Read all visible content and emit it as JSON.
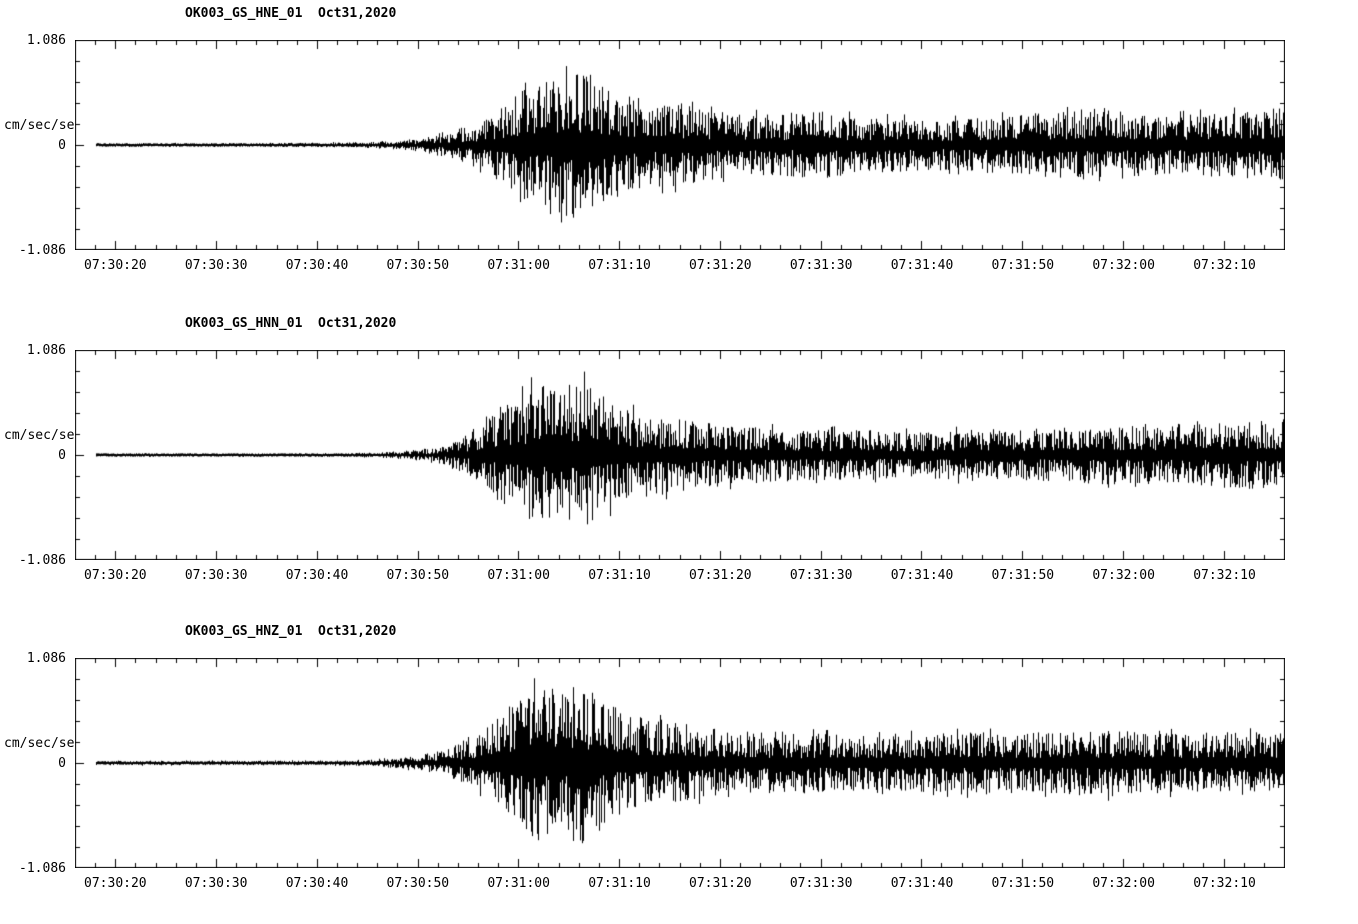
{
  "app": {
    "background": "#ffffff",
    "foreground": "#000000",
    "description": "Three-channel strong-motion seismogram display for station OK003"
  },
  "y_axis": {
    "label": "cm/sec/sec",
    "max_label": "1.086",
    "zero_label": "0",
    "min_label": "-1.086",
    "ymax": 1.086,
    "ymin": -1.086
  },
  "x_ticks": [
    "07:30:20",
    "07:30:30",
    "07:30:40",
    "07:30:50",
    "07:31:00",
    "07:31:10",
    "07:31:20",
    "07:31:30",
    "07:31:40",
    "07:31:50",
    "07:32:00",
    "07:32:10"
  ],
  "panels": [
    {
      "id": "hne",
      "title": "OK003_GS_HNE_01  Oct31,2020"
    },
    {
      "id": "hnn",
      "title": "OK003_GS_HNN_01  Oct31,2020"
    },
    {
      "id": "hnz",
      "title": "OK003_GS_HNZ_01  Oct31,2020"
    }
  ],
  "chart_data": [
    {
      "type": "line",
      "title": "OK003_GS_HNE_01  Oct31,2020",
      "xlabel": "",
      "ylabel": "cm/sec/sec",
      "ylim": [
        -1.086,
        1.086
      ],
      "x_tick_labels": [
        "07:30:20",
        "07:30:30",
        "07:30:40",
        "07:30:50",
        "07:31:00",
        "07:31:10",
        "07:31:20",
        "07:31:30",
        "07:31:40",
        "07:31:50",
        "07:32:00",
        "07:32:10"
      ],
      "axis_span_seconds": 120,
      "tick_interval_seconds": 10,
      "minor_tick_seconds": 2,
      "grid": false,
      "legend": "none",
      "waveform_envelope": {
        "note": "peak absolute amplitude (cm/sec/sec) vs seconds after left axis edge",
        "t": [
          2,
          10,
          20,
          26,
          30,
          34,
          37,
          40,
          42,
          44,
          46,
          48,
          50,
          52,
          54,
          57,
          60,
          63,
          66,
          70,
          74,
          78,
          82,
          86,
          90,
          94,
          98,
          102,
          105,
          108,
          112,
          116,
          120
        ],
        "amp": [
          0.016,
          0.016,
          0.017,
          0.022,
          0.033,
          0.065,
          0.13,
          0.239,
          0.38,
          0.543,
          0.652,
          0.706,
          0.782,
          0.652,
          0.543,
          0.456,
          0.434,
          0.358,
          0.326,
          0.326,
          0.348,
          0.293,
          0.282,
          0.261,
          0.282,
          0.326,
          0.348,
          0.391,
          0.326,
          0.304,
          0.326,
          0.358,
          0.391
        ]
      }
    },
    {
      "type": "line",
      "title": "OK003_GS_HNN_01  Oct31,2020",
      "xlabel": "",
      "ylabel": "cm/sec/sec",
      "ylim": [
        -1.086,
        1.086
      ],
      "x_tick_labels": [
        "07:30:20",
        "07:30:30",
        "07:30:40",
        "07:30:50",
        "07:31:00",
        "07:31:10",
        "07:31:20",
        "07:31:30",
        "07:31:40",
        "07:31:50",
        "07:32:00",
        "07:32:10"
      ],
      "axis_span_seconds": 120,
      "tick_interval_seconds": 10,
      "minor_tick_seconds": 2,
      "grid": false,
      "legend": "none",
      "waveform_envelope": {
        "note": "peak absolute amplitude (cm/sec/sec) vs seconds after left axis edge",
        "t": [
          2,
          10,
          20,
          26,
          30,
          34,
          37,
          40,
          42,
          44,
          46,
          48,
          50,
          52,
          54,
          57,
          60,
          63,
          66,
          70,
          74,
          78,
          82,
          86,
          90,
          94,
          98,
          102,
          106,
          110,
          114,
          118,
          120
        ],
        "amp": [
          0.013,
          0.013,
          0.014,
          0.016,
          0.022,
          0.054,
          0.109,
          0.272,
          0.489,
          0.652,
          0.76,
          0.706,
          0.815,
          0.652,
          0.489,
          0.434,
          0.38,
          0.348,
          0.304,
          0.282,
          0.261,
          0.261,
          0.239,
          0.25,
          0.272,
          0.261,
          0.282,
          0.304,
          0.293,
          0.326,
          0.348,
          0.369,
          0.369
        ]
      }
    },
    {
      "type": "line",
      "title": "OK003_GS_HNZ_01  Oct31,2020",
      "xlabel": "",
      "ylabel": "cm/sec/sec",
      "ylim": [
        -1.086,
        1.086
      ],
      "x_tick_labels": [
        "07:30:20",
        "07:30:30",
        "07:30:40",
        "07:30:50",
        "07:31:00",
        "07:31:10",
        "07:31:20",
        "07:31:30",
        "07:31:40",
        "07:31:50",
        "07:32:00",
        "07:32:10"
      ],
      "axis_span_seconds": 120,
      "tick_interval_seconds": 10,
      "minor_tick_seconds": 2,
      "grid": false,
      "legend": "none",
      "waveform_envelope": {
        "note": "peak absolute amplitude (cm/sec/sec) vs seconds after left axis edge",
        "t": [
          2,
          10,
          20,
          26,
          30,
          34,
          37,
          40,
          42,
          44,
          46,
          48,
          50,
          52,
          54,
          57,
          60,
          63,
          66,
          70,
          74,
          78,
          82,
          86,
          90,
          94,
          98,
          102,
          106,
          110,
          114,
          118,
          120
        ],
        "amp": [
          0.02,
          0.02,
          0.022,
          0.024,
          0.033,
          0.076,
          0.152,
          0.326,
          0.489,
          0.673,
          0.815,
          0.76,
          0.869,
          0.706,
          0.543,
          0.456,
          0.413,
          0.358,
          0.326,
          0.326,
          0.304,
          0.282,
          0.293,
          0.304,
          0.326,
          0.304,
          0.326,
          0.348,
          0.326,
          0.304,
          0.326,
          0.326,
          0.326
        ]
      }
    }
  ]
}
